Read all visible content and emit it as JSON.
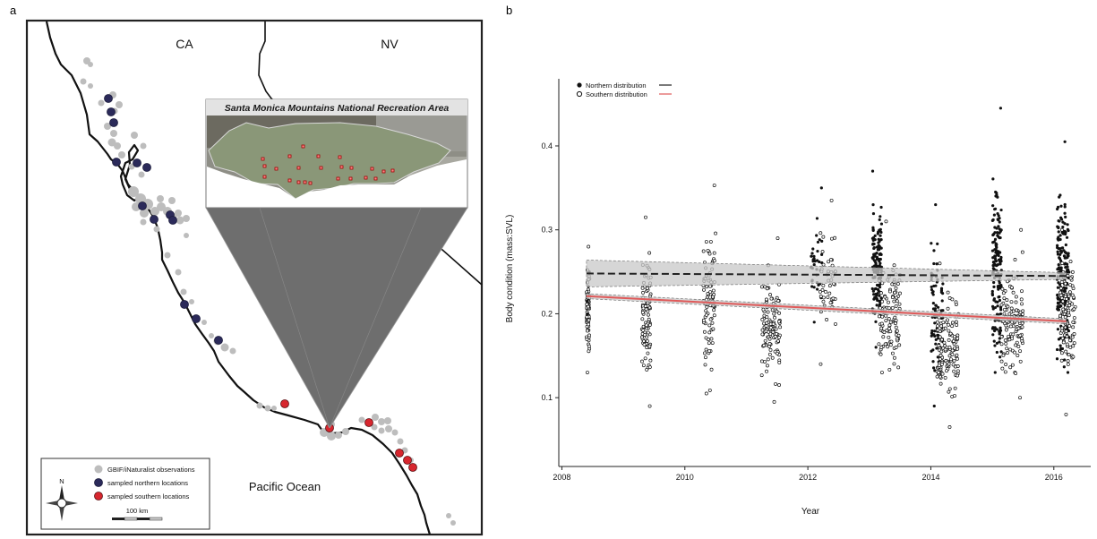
{
  "panels": {
    "a_label": "a",
    "b_label": "b"
  },
  "map": {
    "states": [
      "CA",
      "NV"
    ],
    "ocean_label": "Pacific Ocean",
    "inset_title": "Santa Monica Mountains National Recreation Area",
    "compass_label": "N",
    "scale_label": "100 km",
    "legend": [
      {
        "label": "GBIF/iNaturalist observations",
        "color": "#bdbdbd"
      },
      {
        "label": "sampled northern locations",
        "color": "#2b2a5a"
      },
      {
        "label": "sampled southern locations",
        "color": "#d7262e"
      }
    ],
    "colors": {
      "coast": "#111111",
      "inset_cone": "#6e6e6e",
      "inset_land": "#8d9a86",
      "inset_urban": "#8b8b8b"
    }
  },
  "chart_data": {
    "type": "scatter",
    "title": "",
    "xlabel": "Year",
    "ylabel": "Body condition (mass:SVL)",
    "xlim": [
      2007.95,
      2016.6
    ],
    "ylim": [
      0.018,
      0.48
    ],
    "xticks": [
      2008,
      2010,
      2012,
      2014,
      2016
    ],
    "yticks": [
      0.1,
      0.2,
      0.3,
      0.4
    ],
    "legend_position": "top-left",
    "series": [
      {
        "name": "Northern distribution",
        "marker": "filled",
        "line_color": "#222222",
        "line_style": "dashed",
        "trend": {
          "x": [
            2008.4,
            2016.2
          ],
          "y": [
            0.248,
            0.245
          ]
        },
        "ci_at_start": 0.016,
        "ci_at_end": 0.004
      },
      {
        "name": "Southern distribution",
        "marker": "open",
        "line_color": "#e05a5a",
        "line_style": "solid",
        "trend": {
          "x": [
            2008.4,
            2016.2
          ],
          "y": [
            0.221,
            0.191
          ]
        },
        "ci_at_start": 0.003,
        "ci_at_end": 0.003
      }
    ],
    "sampling_clusters": [
      {
        "series": "Southern distribution",
        "x_start": 2008.4,
        "x_end": 2008.45,
        "count": 70,
        "y_min": 0.13,
        "y_max": 0.28,
        "y_center": 0.2
      },
      {
        "series": "Northern distribution",
        "x_start": 2008.4,
        "x_end": 2008.45,
        "count": 4,
        "y_min": 0.2,
        "y_max": 0.25,
        "y_center": 0.22
      },
      {
        "series": "Southern distribution",
        "x_start": 2009.3,
        "x_end": 2009.45,
        "count": 95,
        "y_min": 0.09,
        "y_max": 0.315,
        "y_center": 0.2
      },
      {
        "series": "Southern distribution",
        "x_start": 2010.3,
        "x_end": 2010.5,
        "count": 90,
        "y_min": 0.105,
        "y_max": 0.353,
        "y_center": 0.215
      },
      {
        "series": "Southern distribution",
        "x_start": 2011.25,
        "x_end": 2011.55,
        "count": 120,
        "y_min": 0.095,
        "y_max": 0.29,
        "y_center": 0.185
      },
      {
        "series": "Northern distribution",
        "x_start": 2012.05,
        "x_end": 2012.25,
        "count": 35,
        "y_min": 0.19,
        "y_max": 0.35,
        "y_center": 0.26
      },
      {
        "series": "Southern distribution",
        "x_start": 2012.2,
        "x_end": 2012.45,
        "count": 45,
        "y_min": 0.14,
        "y_max": 0.335,
        "y_center": 0.235
      },
      {
        "series": "Northern distribution",
        "x_start": 2013.05,
        "x_end": 2013.2,
        "count": 140,
        "y_min": 0.16,
        "y_max": 0.37,
        "y_center": 0.25
      },
      {
        "series": "Southern distribution",
        "x_start": 2013.15,
        "x_end": 2013.5,
        "count": 110,
        "y_min": 0.13,
        "y_max": 0.31,
        "y_center": 0.2
      },
      {
        "series": "Northern distribution",
        "x_start": 2014.0,
        "x_end": 2014.2,
        "count": 80,
        "y_min": 0.09,
        "y_max": 0.33,
        "y_center": 0.2
      },
      {
        "series": "Southern distribution",
        "x_start": 2014.1,
        "x_end": 2014.45,
        "count": 130,
        "y_min": 0.065,
        "y_max": 0.26,
        "y_center": 0.16
      },
      {
        "series": "Northern distribution",
        "x_start": 2015.0,
        "x_end": 2015.15,
        "count": 150,
        "y_min": 0.13,
        "y_max": 0.445,
        "y_center": 0.25
      },
      {
        "series": "Southern distribution",
        "x_start": 2015.15,
        "x_end": 2015.5,
        "count": 130,
        "y_min": 0.1,
        "y_max": 0.3,
        "y_center": 0.19
      },
      {
        "series": "Northern distribution",
        "x_start": 2016.05,
        "x_end": 2016.25,
        "count": 190,
        "y_min": 0.13,
        "y_max": 0.405,
        "y_center": 0.245
      },
      {
        "series": "Southern distribution",
        "x_start": 2016.1,
        "x_end": 2016.35,
        "count": 110,
        "y_min": 0.08,
        "y_max": 0.3,
        "y_center": 0.2
      }
    ]
  }
}
